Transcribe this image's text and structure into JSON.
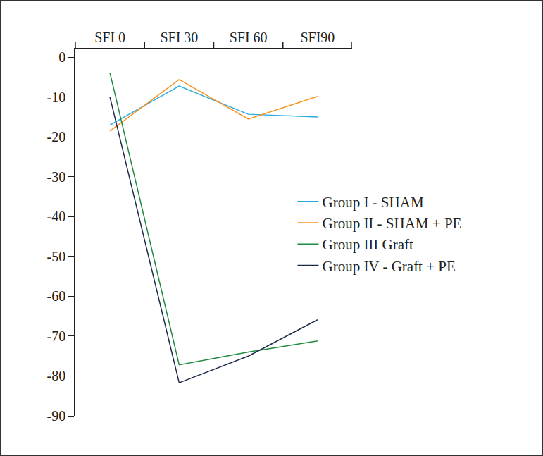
{
  "chart_data": {
    "type": "line",
    "categories": [
      "SFI 0",
      "SFI 30",
      "SFI 60",
      "SFI90"
    ],
    "series": [
      {
        "name": "Group I - SHAM",
        "color": "#29abe2",
        "values": [
          -17,
          -7.2,
          -14.3,
          -15
        ]
      },
      {
        "name": "Group II - SHAM + PE",
        "color": "#f7941d",
        "values": [
          -18.5,
          -5.6,
          -15.5,
          -9.8
        ]
      },
      {
        "name": "Group III Graft",
        "color": "#1e8a3e",
        "values": [
          -3.9,
          -77.2,
          -74,
          -71.2
        ]
      },
      {
        "name": "Group IV - Graft + PE",
        "color": "#1b2a47",
        "values": [
          -10,
          -81.7,
          -75,
          -65.9
        ]
      }
    ],
    "ylim": [
      -90,
      2
    ],
    "yticks": [
      0,
      -10,
      -20,
      -30,
      -40,
      -50,
      -60,
      -70,
      -80,
      -90
    ],
    "grid": false,
    "legend": "right"
  }
}
